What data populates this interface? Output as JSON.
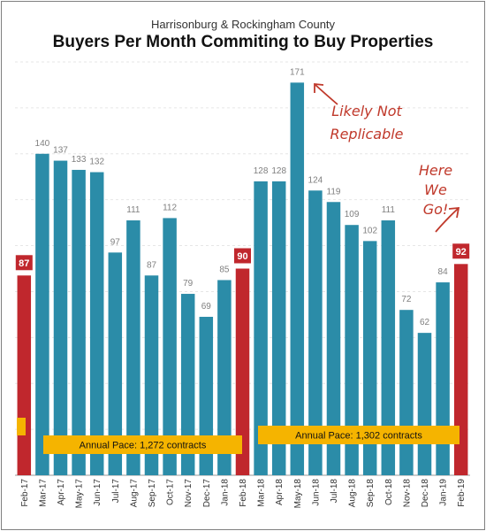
{
  "chart_data": {
    "type": "bar",
    "title": "Buyers Per Month Commiting to Buy Properties",
    "subtitle": "Harrisonburg & Rockingham County",
    "categories": [
      "Feb-17",
      "Mar-17",
      "Apr-17",
      "May-17",
      "Jun-17",
      "Jul-17",
      "Aug-17",
      "Sep-17",
      "Oct-17",
      "Nov-17",
      "Dec-17",
      "Jan-18",
      "Feb-18",
      "Mar-18",
      "Apr-18",
      "May-18",
      "Jun-18",
      "Jul-18",
      "Aug-18",
      "Sep-18",
      "Oct-18",
      "Nov-18",
      "Dec-18",
      "Jan-19",
      "Feb-19"
    ],
    "values": [
      87,
      140,
      137,
      133,
      132,
      97,
      111,
      87,
      112,
      79,
      69,
      85,
      90,
      128,
      128,
      171,
      124,
      119,
      109,
      102,
      111,
      72,
      62,
      84,
      92
    ],
    "highlighted": [
      "Feb-17",
      "Feb-18",
      "Feb-19"
    ],
    "ylim": [
      0,
      180
    ],
    "grid": true,
    "xlabel": "",
    "ylabel": "",
    "colors": {
      "bar": "#2b8ca8",
      "highlight": "#c0272d",
      "pace": "#f5b400",
      "annotation": "#c0392b"
    },
    "annotations": [
      {
        "text_lines": [
          "Likely Not",
          "Replicable"
        ],
        "points_to": "May-18"
      },
      {
        "text_lines": [
          "Here",
          "We",
          "Go!"
        ],
        "points_to": "Feb-19"
      }
    ],
    "pace_boxes": [
      {
        "label": "Annual Pace: 1,272 contracts"
      },
      {
        "label": "Annual Pace: 1,302 contracts"
      }
    ]
  }
}
